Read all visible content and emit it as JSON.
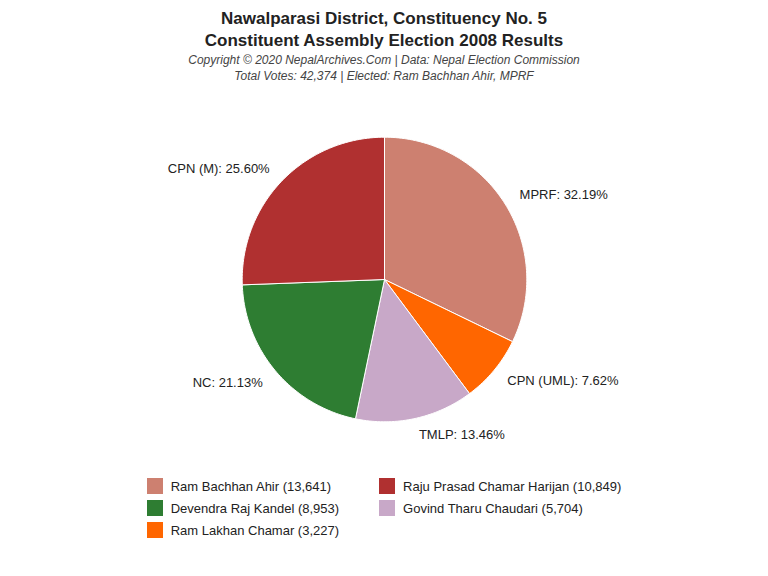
{
  "chart_data": {
    "type": "pie",
    "title": "Nawalparasi District, Constituency No. 5",
    "subtitle": "Constituent Assembly Election 2008 Results",
    "annotations": [
      "Copyright © 2020 NepalArchives.Com | Data: Nepal Election Commission",
      "Total Votes: 42,374 | Elected: Ram Bachhan Ahir, MPRF"
    ],
    "categories": [
      "MPRF",
      "CPN (UML)",
      "TMLP",
      "NC",
      "CPN (M)"
    ],
    "values": [
      32.19,
      7.62,
      13.46,
      21.13,
      25.6
    ],
    "value_labels": [
      "MPRF: 32.19%",
      "CPN (UML): 7.62%",
      "TMLP: 13.46%",
      "NC: 21.13%",
      "CPN (M): 25.60%"
    ],
    "data_labels": true,
    "colors": [
      "#CD8070",
      "#FF6600",
      "#C8A8C8",
      "#2E7D32",
      "#B03030"
    ],
    "legend": "bottom",
    "legend_entries": [
      {
        "label": "Ram Bachhan Ahir (13,641)",
        "color": "#CD8070"
      },
      {
        "label": "Devendra Raj Kandel (8,953)",
        "color": "#2E7D32"
      },
      {
        "label": "Ram Lakhan Chamar (3,227)",
        "color": "#FF6600"
      },
      {
        "label": "Raju Prasad Chamar Harijan (10,849)",
        "color": "#B03030"
      },
      {
        "label": "Govind Tharu Chaudari (5,704)",
        "color": "#C8A8C8"
      }
    ]
  }
}
